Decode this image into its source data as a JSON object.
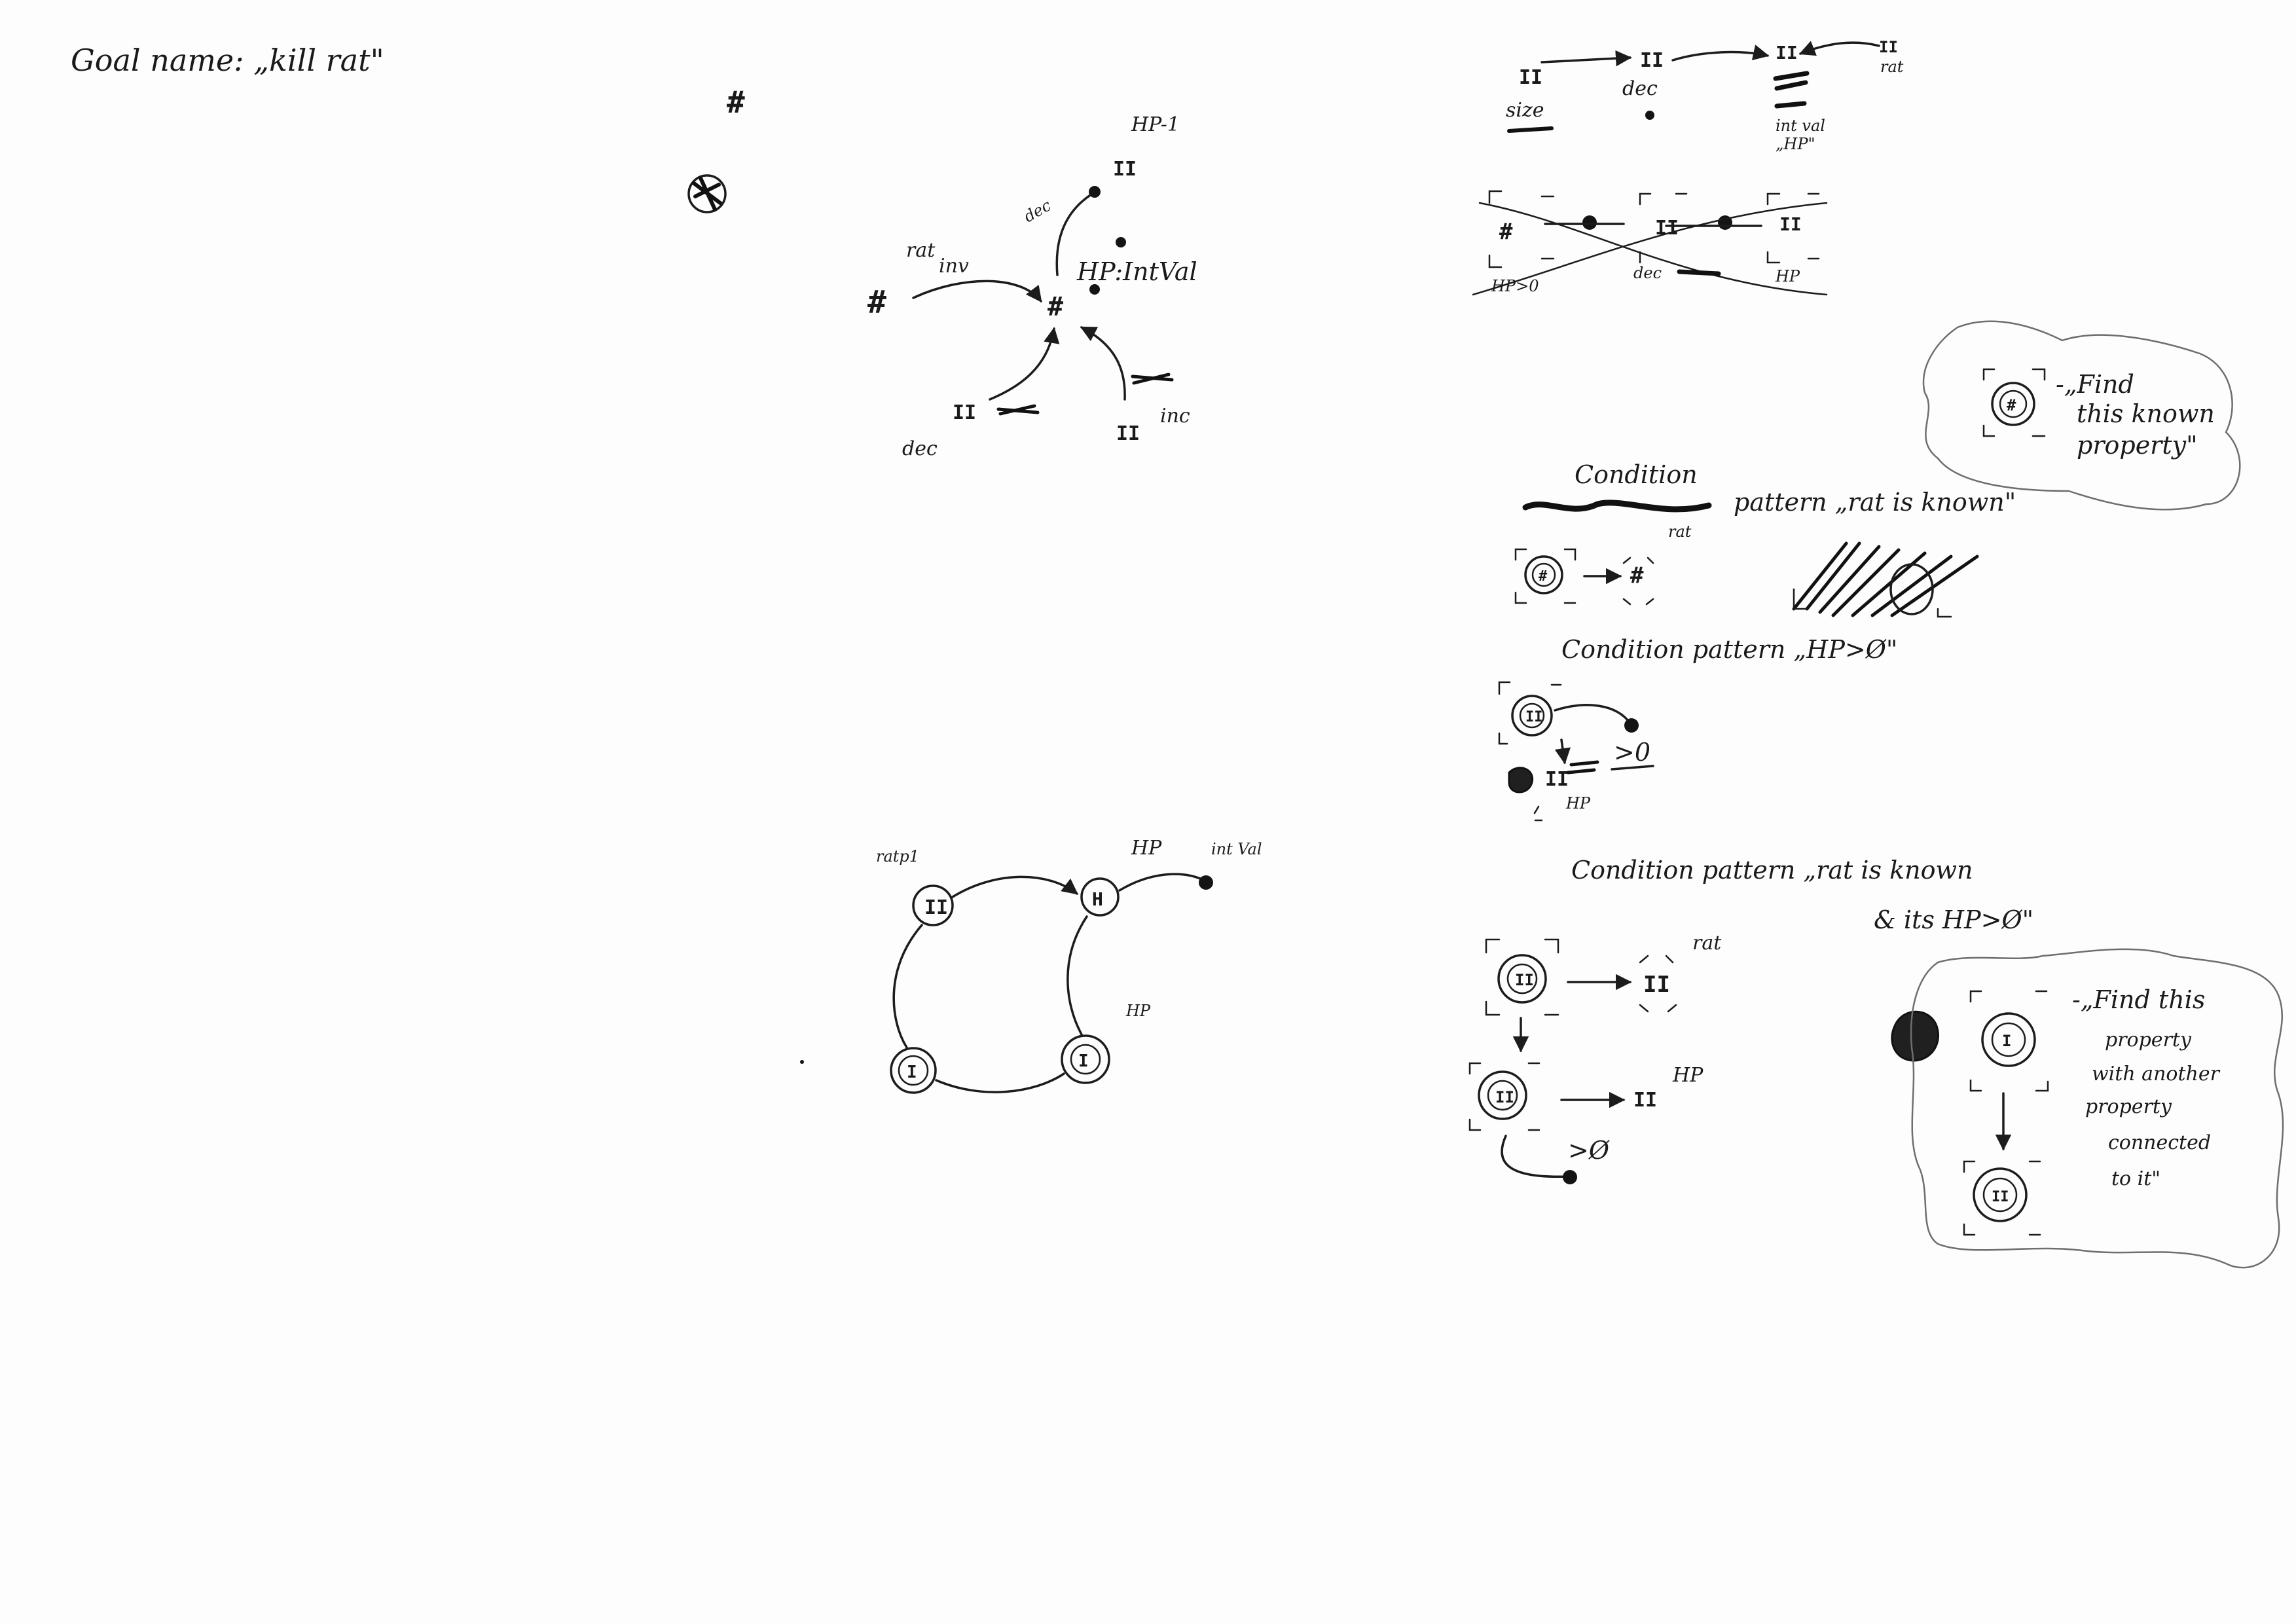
{
  "title": "Goal name: „kill rat\"",
  "graph_top": {
    "node_label_hp_minus": "HP-1",
    "node_label_dec_top": "dec",
    "node_label_hp_intval": "HP:IntVal",
    "edge_label_rat": "rat",
    "edge_label_inv": "inv",
    "node_label_dec_bottom": "dec",
    "node_label_inc": "inc"
  },
  "graph_bottom": {
    "label_ratp1": "ratp1",
    "label_hp_top": "HP",
    "label_intval": "int Val",
    "label_hp_mid": "HP"
  },
  "right_top": {
    "label_rat": "rat",
    "label_size": "size",
    "label_dec": "dec",
    "label_intval": "int val",
    "label_hp_quoted": "„HP\"",
    "label_hp_gt0": "HP>0",
    "label_dec_cross": "dec",
    "label_hp_cross": "HP"
  },
  "cloud_1": {
    "line1": "-„Find",
    "line2": "this known",
    "line3": "property\""
  },
  "condition_rat_known": {
    "heading_word": "Condition",
    "heading_rest": "pattern „rat is known\"",
    "label_rat": "rat"
  },
  "condition_hp": {
    "heading": "Condition pattern „HP>Ø\"",
    "label_gt0": ">0",
    "label_hp": "HP"
  },
  "condition_combined": {
    "heading_line1": "Condition pattern „rat is known",
    "heading_line2": "& its HP>Ø\"",
    "label_rat": "rat",
    "label_hp": "HP",
    "label_gt0": ">Ø"
  },
  "cloud_2": {
    "line1": "-„Find this",
    "line2": "property",
    "line3": "with another",
    "line4": "property",
    "line5": "connected",
    "line6": "to it\""
  }
}
